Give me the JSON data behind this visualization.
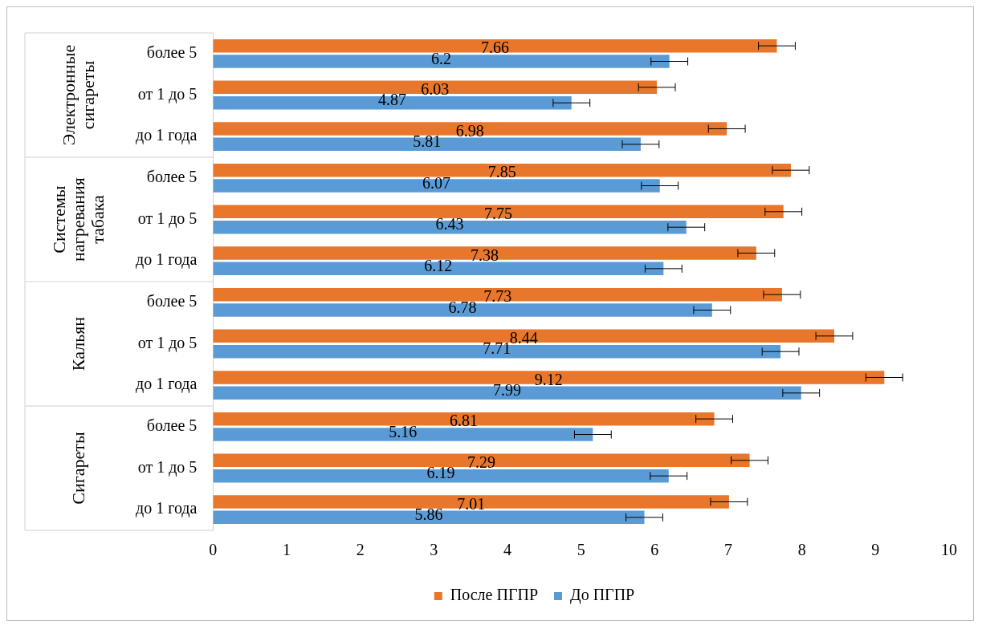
{
  "chart_data": {
    "type": "bar",
    "orientation": "horizontal",
    "categories": [
      "более 5",
      "от 1 до 5",
      "до 1 года",
      "более 5",
      "от 1 до 5",
      "до 1 года",
      "более 5",
      "от 1 до 5",
      "до 1 года",
      "более 5",
      "от 1 до 5",
      "до 1 года"
    ],
    "annotations": [
      "Электронные сигареты",
      "Системы нагревания табака",
      "Кальян",
      "Сигареты"
    ],
    "series": [
      {
        "name": "После ПГПР",
        "color": "#e8762b",
        "values": [
          7.66,
          6.03,
          6.98,
          7.85,
          7.75,
          7.38,
          7.73,
          8.44,
          9.12,
          6.81,
          7.29,
          7.01
        ],
        "errors": [
          0.25,
          0.25,
          0.25,
          0.25,
          0.25,
          0.25,
          0.25,
          0.25,
          0.25,
          0.25,
          0.25,
          0.25
        ]
      },
      {
        "name": "До ПГПР",
        "color": "#5b9bd5",
        "values": [
          6.2,
          4.87,
          5.81,
          6.07,
          6.43,
          6.12,
          6.78,
          7.71,
          7.99,
          5.16,
          6.19,
          5.86
        ],
        "errors": [
          0.25,
          0.25,
          0.25,
          0.25,
          0.25,
          0.25,
          0.25,
          0.25,
          0.25,
          0.25,
          0.25,
          0.25
        ]
      }
    ],
    "xlim": [
      0,
      10
    ],
    "xticks": [
      0,
      1,
      2,
      3,
      4,
      5,
      6,
      7,
      8,
      9,
      10
    ],
    "data_labels": true,
    "grid": false,
    "legend": "bottom"
  }
}
